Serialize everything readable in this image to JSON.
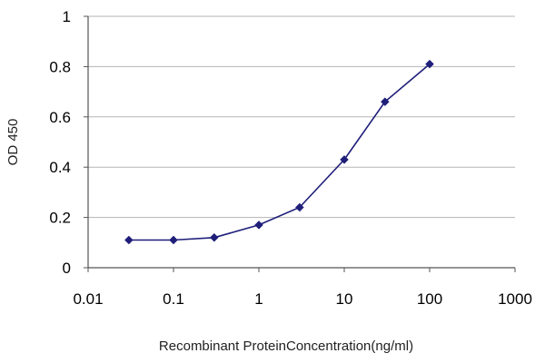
{
  "chart_data": {
    "type": "line",
    "title": "",
    "xlabel": "Recombinant ProteinConcentration(ng/ml)",
    "ylabel": "OD 450",
    "x_scale": "log",
    "xlim": [
      0.01,
      1000
    ],
    "ylim": [
      0,
      1
    ],
    "x_ticks": [
      {
        "value": 0.01,
        "label": "0.01"
      },
      {
        "value": 0.1,
        "label": "0.1"
      },
      {
        "value": 1,
        "label": "1"
      },
      {
        "value": 10,
        "label": "10"
      },
      {
        "value": 100,
        "label": "100"
      },
      {
        "value": 1000,
        "label": "1000"
      }
    ],
    "y_ticks": [
      {
        "value": 0,
        "label": "0"
      },
      {
        "value": 0.2,
        "label": "0.2"
      },
      {
        "value": 0.4,
        "label": "0.4"
      },
      {
        "value": 0.6,
        "label": "0.6"
      },
      {
        "value": 0.8,
        "label": "0.8"
      },
      {
        "value": 1,
        "label": "1"
      }
    ],
    "grid": "horizontal",
    "legend": "none",
    "series": [
      {
        "color": "#1f1f7a",
        "marker": "diamond",
        "x": [
          0.03,
          0.1,
          0.3,
          1,
          3,
          10,
          30,
          100
        ],
        "values": [
          0.11,
          0.11,
          0.12,
          0.17,
          0.24,
          0.43,
          0.66,
          0.81
        ]
      }
    ]
  }
}
